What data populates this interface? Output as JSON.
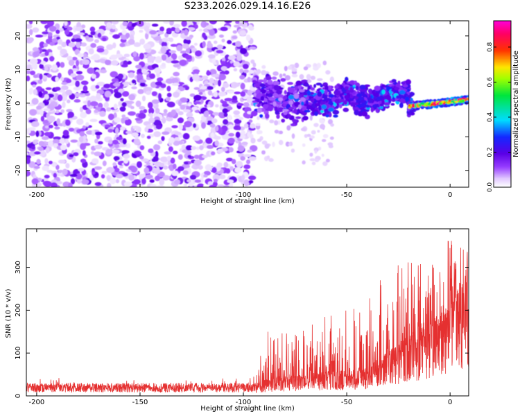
{
  "title": "S233.2026.029.14.16.E26",
  "colors": {
    "signal": "#e53030",
    "axis": "#000000"
  },
  "chart_data": [
    {
      "type": "heatmap",
      "title": "S233.2026.029.14.16.E26",
      "xlabel": "Height of straight line (km)",
      "ylabel": "Frequency (Hz)",
      "xlim": [
        -205,
        9
      ],
      "ylim": [
        -25,
        24.5
      ],
      "xticks": [
        -200,
        -150,
        -100,
        -50,
        0
      ],
      "yticks": [
        -20,
        -10,
        0,
        10,
        20
      ],
      "colorbar": {
        "label": "Normalized spectral amplitude",
        "range": [
          0,
          0.95
        ],
        "ticks": [
          "0.0",
          "0.2",
          "0.4",
          "0.6",
          "0.8"
        ],
        "tick_values": [
          0,
          0.2,
          0.4,
          0.6,
          0.8
        ],
        "colormap": "rainbow (white-violet-blue-cyan-green-yellow-red-magenta)"
      },
      "regions": [
        {
          "name": "noise",
          "x_range": [
            -205,
            -95
          ],
          "freq_range": [
            -25,
            24.5
          ],
          "amplitude": [
            0.02,
            0.15
          ]
        },
        {
          "name": "signal-onset",
          "x_range": [
            -95,
            -20
          ],
          "center_freq": [
            4,
            0.5
          ],
          "amplitude": [
            0.1,
            0.3
          ]
        },
        {
          "name": "signal-strong",
          "x_range": [
            -20,
            9
          ],
          "center_freq": [
            -1,
            1
          ],
          "amplitude": [
            0.4,
            0.95
          ]
        }
      ]
    },
    {
      "type": "line",
      "xlabel": "Height of straight line (km)",
      "ylabel": "SNR (10 * v/v)",
      "xlim": [
        -205,
        9
      ],
      "ylim": [
        0,
        390
      ],
      "xticks": [
        -200,
        -150,
        -100,
        -50,
        0
      ],
      "yticks": [
        0,
        100,
        200,
        300
      ],
      "series": [
        {
          "name": "SNR",
          "envelope": {
            "x": [
              -205,
              -100,
              -95,
              -90,
              -80,
              -60,
              -40,
              -30,
              -20,
              -10,
              0,
              5,
              9
            ],
            "baseline": [
              18,
              18,
              25,
              35,
              40,
              50,
              60,
              90,
              130,
              160,
              200,
              240,
              260
            ],
            "peak": [
              40,
              42,
              60,
              150,
              150,
              190,
              230,
              300,
              360,
              320,
              380,
              385,
              330
            ]
          }
        }
      ]
    }
  ]
}
